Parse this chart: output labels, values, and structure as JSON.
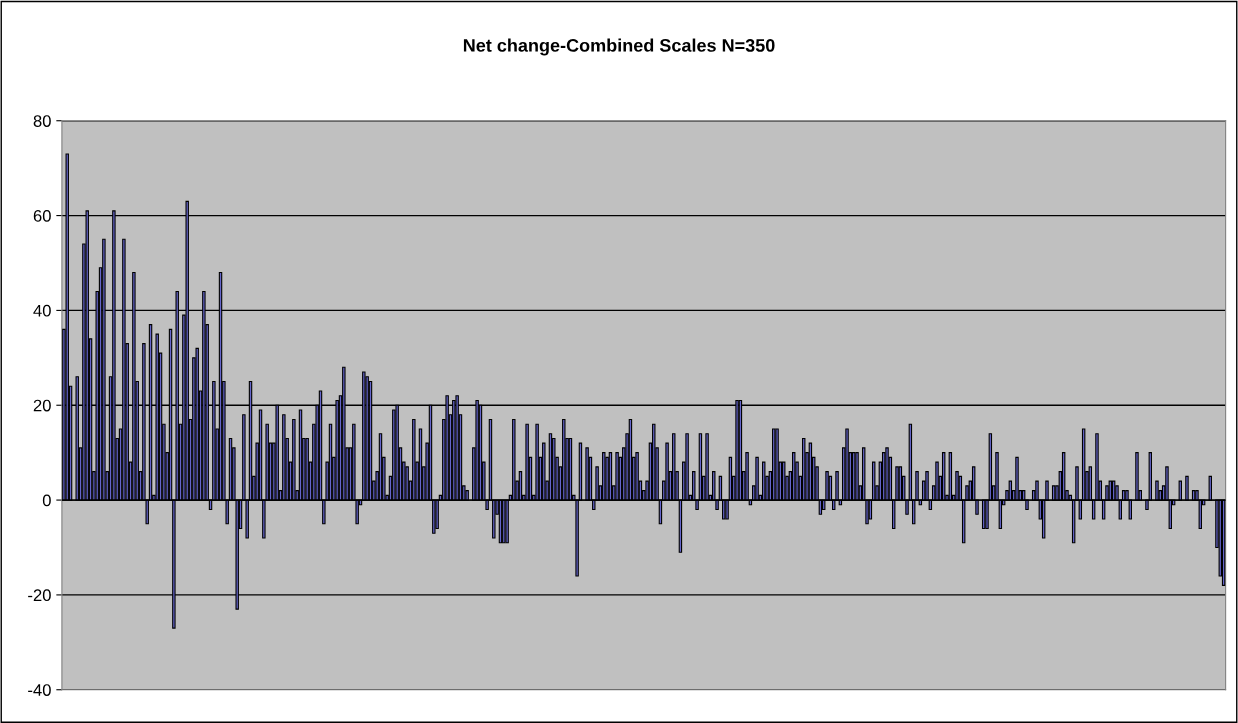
{
  "chart_data": {
    "type": "bar",
    "title": "Net change-Combined Scales N=350",
    "categories": [
      null,
      null,
      null,
      null,
      null,
      null,
      null,
      null,
      null,
      null,
      null,
      null,
      null,
      null,
      null,
      null,
      null,
      null,
      null,
      null,
      null,
      null,
      null,
      null,
      null,
      null,
      null,
      null,
      null,
      null,
      null,
      null,
      null,
      null,
      null,
      null,
      null,
      null,
      null,
      null,
      null,
      null,
      null,
      null,
      null,
      null,
      null,
      null,
      null,
      null,
      null,
      null,
      null,
      null,
      null,
      null,
      null,
      null,
      null,
      null,
      null,
      null,
      null,
      null,
      null,
      null,
      null,
      null,
      null,
      null,
      null,
      null,
      null,
      null,
      null,
      null,
      null,
      null,
      null,
      null,
      null,
      null,
      null,
      null,
      null,
      null,
      null,
      null,
      null,
      null,
      null,
      null,
      null,
      null,
      null,
      null,
      null,
      null,
      null,
      null,
      null,
      null,
      null,
      null,
      null,
      null,
      null,
      null,
      null,
      null,
      null,
      null,
      null,
      null,
      null,
      null,
      null,
      null,
      null,
      null,
      null,
      null,
      null,
      null,
      null,
      null,
      null,
      null,
      null,
      null,
      null,
      null,
      null,
      null,
      null,
      null,
      null,
      null,
      null,
      null,
      null,
      null,
      null,
      null,
      null,
      null,
      null,
      null,
      null,
      null,
      null,
      null,
      null,
      null,
      null,
      null,
      null,
      null,
      null,
      null,
      null,
      null,
      null,
      null,
      null,
      null,
      null,
      null,
      null,
      null,
      null,
      null,
      null,
      null,
      null,
      null,
      null,
      null,
      null,
      null,
      null,
      null,
      null,
      null,
      null,
      null,
      null,
      null,
      null,
      null,
      null,
      null,
      null,
      null,
      null,
      null,
      null,
      null,
      null,
      null,
      null,
      null,
      null,
      null,
      null,
      null,
      null,
      null,
      null,
      null,
      null,
      null,
      null,
      null,
      null,
      null,
      null,
      null,
      null,
      null,
      null,
      null,
      null,
      null,
      null,
      null,
      null,
      null,
      null,
      null,
      null,
      null,
      null,
      null,
      null,
      null,
      null,
      null,
      null,
      null,
      null,
      null,
      null,
      null,
      null,
      null,
      null,
      null,
      null,
      null,
      null,
      null,
      null,
      null,
      null,
      null,
      null,
      null,
      null,
      null,
      null,
      null,
      null,
      null,
      null,
      null,
      null,
      null,
      null,
      null,
      null,
      null,
      null,
      null,
      null,
      null,
      null,
      null,
      null,
      null,
      null,
      null,
      null,
      null,
      null,
      null,
      null,
      null,
      null,
      null,
      null,
      null,
      null,
      null,
      null,
      null,
      null,
      null,
      null,
      null,
      null,
      null,
      null,
      null,
      null,
      null,
      null,
      null,
      null,
      null,
      null,
      null,
      null,
      null,
      null,
      null,
      null,
      null,
      null,
      null,
      null,
      null,
      null,
      null,
      null,
      null,
      null,
      null,
      null,
      null,
      null,
      null,
      null,
      null,
      null,
      null,
      null,
      null,
      null,
      null,
      null,
      null,
      null,
      null,
      null,
      null,
      null,
      null,
      null
    ],
    "values": [
      36,
      73,
      24,
      0,
      26,
      11,
      54,
      61,
      34,
      6,
      44,
      49,
      55,
      6,
      26,
      61,
      13,
      15,
      55,
      33,
      8,
      48,
      25,
      6,
      33,
      -5,
      37,
      1,
      35,
      31,
      16,
      10,
      36,
      -27,
      44,
      16,
      39,
      63,
      17,
      30,
      32,
      23,
      44,
      37,
      -2,
      25,
      15,
      48,
      25,
      -5,
      13,
      11,
      -23,
      -6,
      18,
      -8,
      25,
      5,
      12,
      19,
      -8,
      16,
      12,
      12,
      20,
      2,
      18,
      13,
      8,
      17,
      2,
      19,
      13,
      13,
      8,
      16,
      20,
      23,
      -5,
      8,
      16,
      9,
      21,
      22,
      28,
      11,
      11,
      16,
      -5,
      -1,
      27,
      26,
      25,
      4,
      6,
      14,
      9,
      1,
      5,
      19,
      20,
      11,
      8,
      7,
      4,
      17,
      8,
      15,
      7,
      12,
      20,
      -7,
      -6,
      1,
      17,
      22,
      18,
      21,
      22,
      18,
      3,
      2,
      0,
      11,
      21,
      20,
      8,
      -2,
      17,
      -8,
      -3,
      -9,
      -9,
      -9,
      1,
      17,
      4,
      6,
      1,
      16,
      9,
      1,
      16,
      9,
      12,
      4,
      14,
      13,
      9,
      7,
      17,
      13,
      13,
      1,
      -16,
      12,
      0,
      11,
      9,
      -2,
      7,
      3,
      10,
      9,
      10,
      3,
      10,
      9,
      11,
      14,
      17,
      9,
      10,
      4,
      2,
      4,
      12,
      16,
      11,
      -5,
      4,
      12,
      6,
      14,
      6,
      -11,
      8,
      14,
      1,
      6,
      -2,
      14,
      5,
      14,
      1,
      6,
      -2,
      5,
      -4,
      -4,
      9,
      5,
      21,
      21,
      6,
      10,
      -1,
      3,
      9,
      1,
      8,
      5,
      6,
      15,
      15,
      8,
      8,
      5,
      6,
      10,
      8,
      5,
      13,
      10,
      12,
      9,
      7,
      -3,
      -2,
      6,
      5,
      -2,
      6,
      -1,
      11,
      15,
      10,
      10,
      10,
      3,
      11,
      -5,
      -4,
      8,
      3,
      8,
      10,
      11,
      9,
      -6,
      7,
      7,
      5,
      -3,
      16,
      -5,
      6,
      -1,
      4,
      6,
      -2,
      3,
      8,
      5,
      10,
      1,
      10,
      1,
      6,
      5,
      -9,
      3,
      4,
      7,
      -3,
      0,
      -6,
      -6,
      14,
      3,
      10,
      -6,
      -1,
      2,
      4,
      2,
      9,
      2,
      2,
      -2,
      0,
      2,
      4,
      -4,
      -8,
      4,
      0,
      3,
      3,
      6,
      10,
      2,
      1,
      -9,
      7,
      -4,
      15,
      6,
      7,
      -4,
      14,
      4,
      -4,
      3,
      4,
      4,
      3,
      -4,
      2,
      2,
      -4,
      0,
      10,
      2,
      0,
      -2,
      10,
      0,
      4,
      2,
      3,
      7,
      -6,
      -1,
      0,
      4,
      0,
      5,
      0,
      2,
      2,
      -6,
      -1,
      0,
      5,
      0,
      -10,
      -16,
      -18
    ],
    "color": "#6666cc",
    "ylim": [
      -40,
      80
    ],
    "yticks": [
      -40,
      -20,
      0,
      20,
      40,
      60,
      80
    ],
    "grid": "y"
  }
}
